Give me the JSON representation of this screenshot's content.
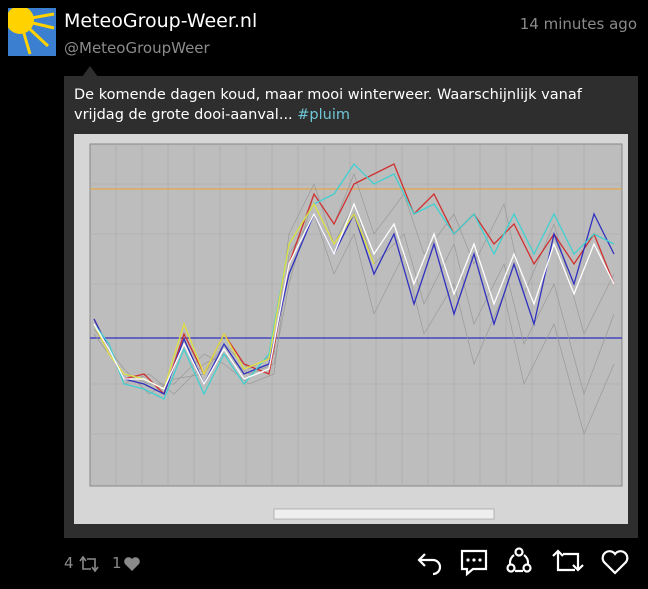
{
  "header": {
    "name": "MeteoGroup-Weer.nl",
    "handle": "@MeteoGroupWeer",
    "time": "14 minutes ago"
  },
  "tweet": {
    "text": "De komende dagen koud, maar mooi winterweer. Waarschijnlijk vanaf vrijdag de grote dooi-aanval... ",
    "hashtag": "#pluim"
  },
  "actions": {
    "retweets": 4,
    "likes": 1
  }
}
